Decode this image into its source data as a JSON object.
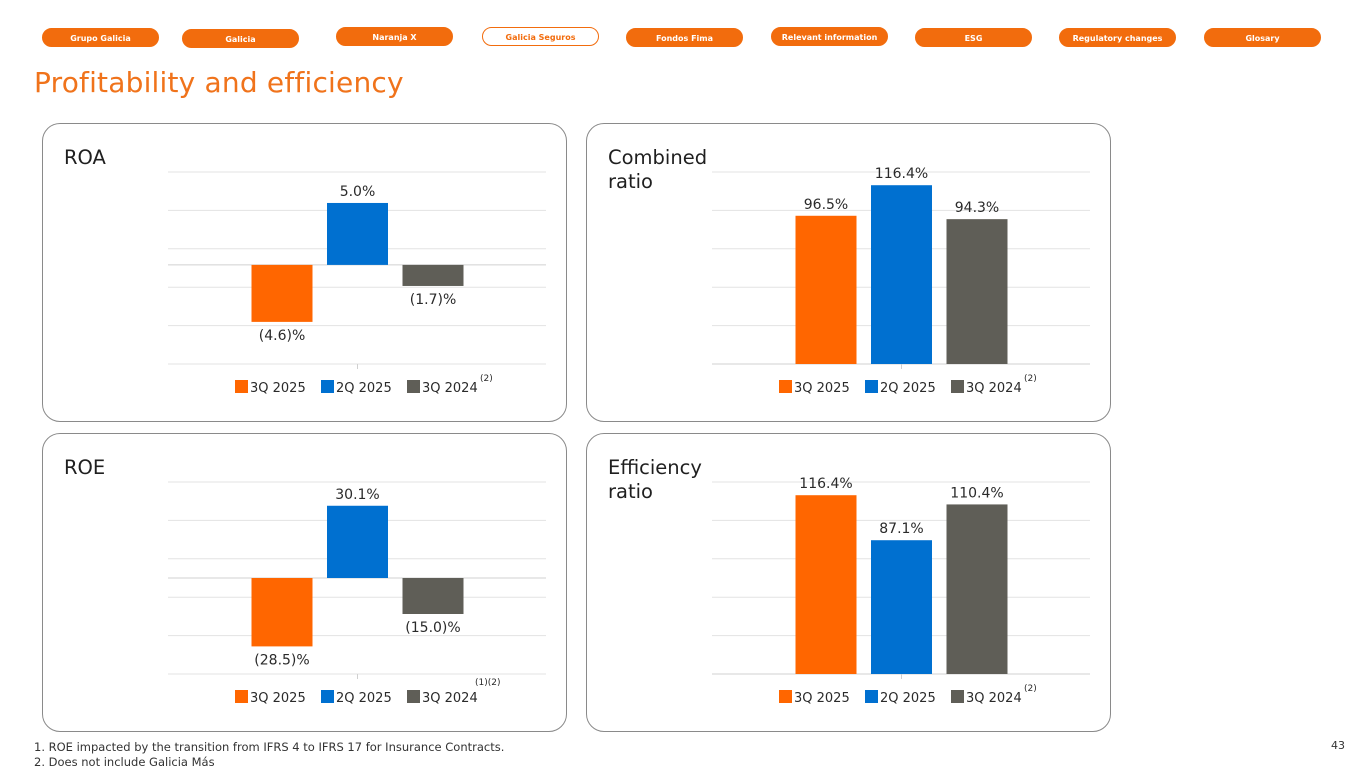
{
  "nav": {
    "items": [
      {
        "label": "Grupo Galicia",
        "active": false
      },
      {
        "label": "Galicia",
        "active": false
      },
      {
        "label": "Naranja X",
        "active": false
      },
      {
        "label": "Galicia Seguros",
        "active": true
      },
      {
        "label": "Fondos Fima",
        "active": false
      },
      {
        "label": "Relevant information",
        "active": false
      },
      {
        "label": "ESG",
        "active": false
      },
      {
        "label": "Regulatory changes",
        "active": false
      },
      {
        "label": "Glosary",
        "active": false
      }
    ]
  },
  "page_title": "Profitability and efficiency",
  "colors": {
    "accent": "#f0731b",
    "nav": "#f26c0d",
    "series_3q2025": "#ff6600",
    "series_2q2025": "#0070d0",
    "series_3q2024": "#5f5e57"
  },
  "chart_data": [
    {
      "id": "roa",
      "type": "bar",
      "title": "ROA",
      "categories": [
        "3Q 2025",
        "2Q 2025",
        "3Q 2024"
      ],
      "values": [
        -4.6,
        5.0,
        -1.7
      ],
      "labels": [
        "(4.6)%",
        "5.0%",
        "(1.7)%"
      ],
      "legend_suffix": "(2)",
      "ylim": [
        -8,
        7.5
      ],
      "grid": true,
      "legend": "bottom"
    },
    {
      "id": "combined",
      "type": "bar",
      "title": "Combined ratio",
      "categories": [
        "3Q 2025",
        "2Q 2025",
        "3Q 2024"
      ],
      "values": [
        96.5,
        116.4,
        94.3
      ],
      "labels": [
        "96.5%",
        "116.4%",
        "94.3%"
      ],
      "legend_suffix": "(2)",
      "ylim": [
        0,
        125
      ],
      "grid": true,
      "legend": "bottom"
    },
    {
      "id": "roe",
      "type": "bar",
      "title": "ROE",
      "categories": [
        "3Q 2025",
        "2Q 2025",
        "3Q 2024"
      ],
      "values": [
        -28.5,
        30.1,
        -15.0
      ],
      "labels": [
        "(28.5)%",
        "30.1%",
        "(15.0)%"
      ],
      "legend_suffix": "(1)(2)",
      "ylim": [
        -40,
        40
      ],
      "grid": true,
      "legend": "bottom"
    },
    {
      "id": "efficiency",
      "type": "bar",
      "title": "Efficiency ratio",
      "categories": [
        "3Q 2025",
        "2Q 2025",
        "3Q 2024"
      ],
      "values": [
        116.4,
        87.1,
        110.4
      ],
      "labels": [
        "116.4%",
        "87.1%",
        "110.4%"
      ],
      "legend_suffix": "(2)",
      "ylim": [
        0,
        125
      ],
      "grid": true,
      "legend": "bottom"
    }
  ],
  "footnotes": [
    "1.  ROE impacted by the transition from IFRS 4 to IFRS 17 for Insurance Contracts.",
    "2.  Does not include Galicia Más"
  ],
  "page_number": "43"
}
